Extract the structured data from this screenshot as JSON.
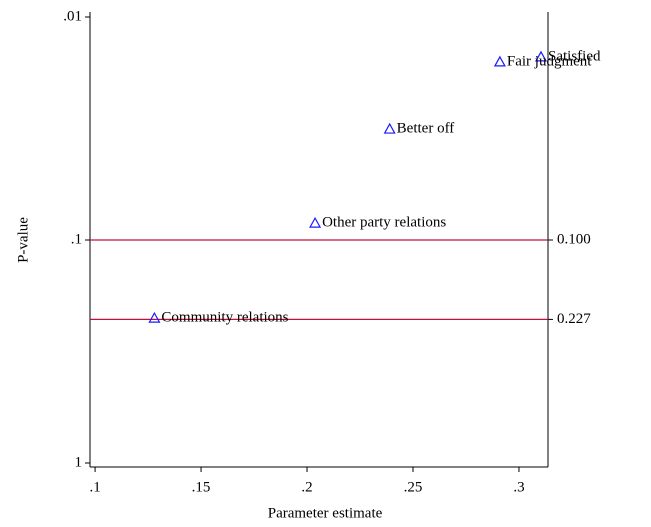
{
  "chart_data": {
    "type": "scatter",
    "x_label": "Parameter estimate",
    "y_label": "P-value",
    "series": [
      {
        "name": null,
        "color": "#1a1aff",
        "x": [
          0.3104,
          0.291,
          0.239,
          0.2038,
          0.128
        ],
        "values": [
          0.0151,
          0.0159,
          0.0318,
          0.084,
          0.224
        ],
        "point_labels": [
          "Satisfied",
          "Fair judgment",
          "Better off",
          "Other party relations",
          "Community relations"
        ]
      }
    ],
    "xlim": [
      0.0976,
      0.3137
    ],
    "xticks": [
      {
        "value": 0.1,
        "label": ".1"
      },
      {
        "value": 0.15,
        "label": ".15"
      },
      {
        "value": 0.2,
        "label": ".2"
      },
      {
        "value": 0.25,
        "label": ".25"
      },
      {
        "value": 0.3,
        "label": ".3"
      }
    ],
    "ylim": [
      0.01,
      1
    ],
    "ylog": true,
    "yreverse": true,
    "yticks": [
      {
        "value": 0.01,
        "label": ".01"
      },
      {
        "value": 0.1,
        "label": ".1"
      },
      1
    ],
    "y2lim": [
      0.01,
      1
    ],
    "y2ticks": [
      {
        "value": 0.1,
        "label": "0.100"
      },
      {
        "value": 0.227,
        "label": "0.227"
      }
    ],
    "reference_line_color": "#c0103c"
  }
}
